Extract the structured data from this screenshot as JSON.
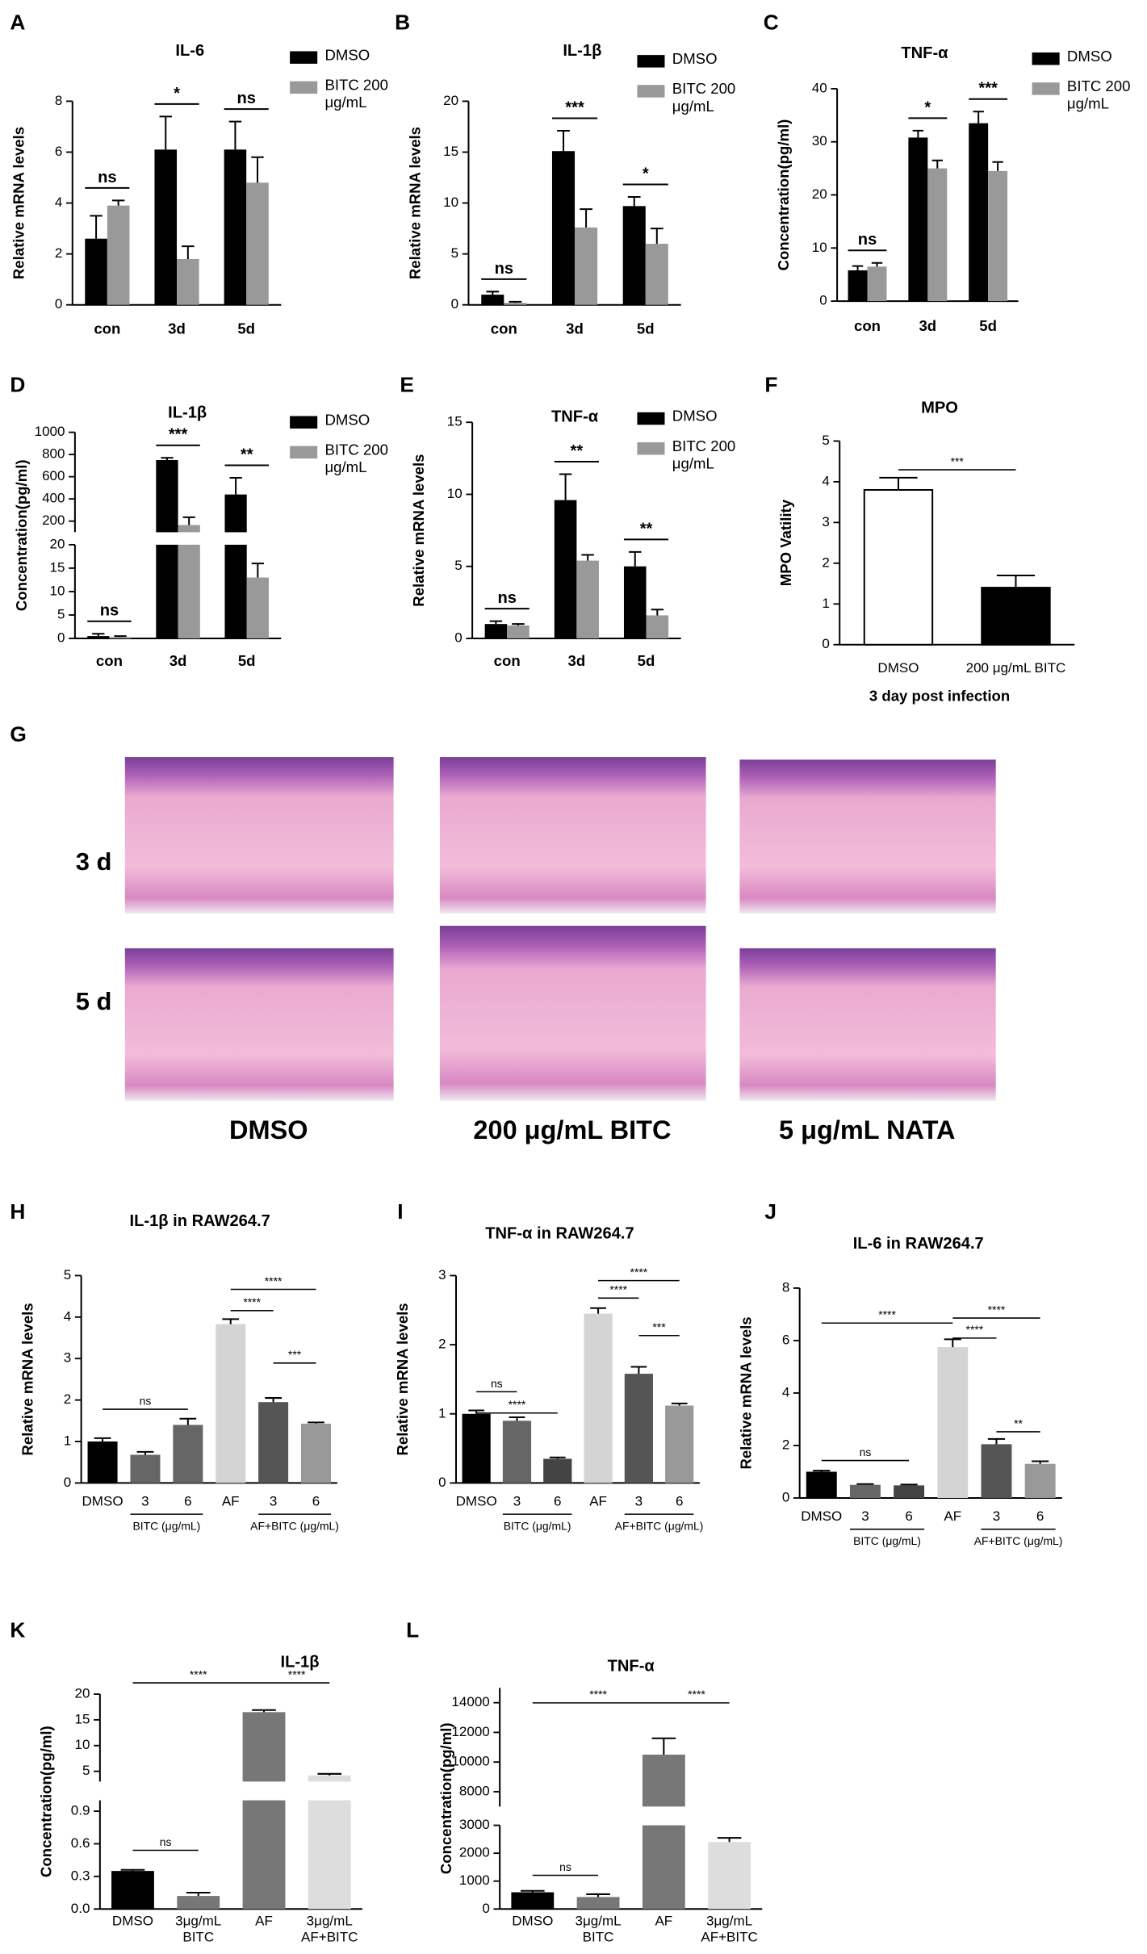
{
  "chart_data": [
    {
      "type": "bar",
      "panel": "A",
      "title": "IL-6",
      "ylabel": "Relative mRNA levels",
      "categories": [
        "con",
        "3d",
        "5d"
      ],
      "series": [
        {
          "name": "DMSO",
          "color": "#000000",
          "values": [
            2.6,
            6.1,
            6.1
          ],
          "errors": [
            0.9,
            1.3,
            1.1
          ]
        },
        {
          "name": "BITC 200 μg/mL",
          "color": "#999999",
          "values": [
            3.9,
            1.8,
            4.8
          ],
          "errors": [
            0.2,
            0.5,
            1.0
          ]
        }
      ],
      "ylim": [
        0,
        8
      ],
      "yticks": [
        0,
        2,
        4,
        6,
        8
      ],
      "annotations": [
        "ns",
        "*",
        "ns"
      ]
    },
    {
      "type": "bar",
      "panel": "B",
      "title": "IL-1β",
      "ylabel": "Relative mRNA levels",
      "categories": [
        "con",
        "3d",
        "5d"
      ],
      "series": [
        {
          "name": "DMSO",
          "color": "#000000",
          "values": [
            1.0,
            15.1,
            9.7
          ],
          "errors": [
            0.3,
            2.0,
            0.9
          ]
        },
        {
          "name": "BITC 200 μg/mL",
          "color": "#999999",
          "values": [
            0.2,
            7.6,
            6.0
          ],
          "errors": [
            0.1,
            1.8,
            1.5
          ]
        }
      ],
      "ylim": [
        0,
        20
      ],
      "yticks": [
        0,
        5,
        10,
        15,
        20
      ],
      "annotations": [
        "ns",
        "***",
        "*"
      ]
    },
    {
      "type": "bar",
      "panel": "C",
      "title": "TNF-α",
      "ylabel": "Concentration(pg/ml)",
      "categories": [
        "con",
        "3d",
        "5d"
      ],
      "series": [
        {
          "name": "DMSO",
          "color": "#000000",
          "values": [
            5.8,
            30.8,
            33.5
          ],
          "errors": [
            0.8,
            1.3,
            2.2
          ]
        },
        {
          "name": "BITC 200 μg/mL",
          "color": "#999999",
          "values": [
            6.5,
            25.0,
            24.5
          ],
          "errors": [
            0.7,
            1.5,
            1.7
          ]
        }
      ],
      "ylim": [
        0,
        40
      ],
      "yticks": [
        0,
        10,
        20,
        30,
        40
      ],
      "annotations": [
        "ns",
        "*",
        "***"
      ]
    },
    {
      "type": "bar",
      "panel": "D",
      "title": "IL-1β",
      "ylabel": "Concentration(pg/ml)",
      "categories": [
        "con",
        "3d",
        "5d"
      ],
      "series": [
        {
          "name": "DMSO",
          "color": "#000000",
          "values": [
            0.5,
            750,
            440
          ],
          "errors": [
            0.5,
            20,
            150
          ]
        },
        {
          "name": "BITC 200 μg/mL",
          "color": "#999999",
          "values": [
            0.3,
            165,
            13
          ],
          "errors": [
            0.2,
            70,
            3
          ]
        }
      ],
      "axis_segments": [
        {
          "ylim": [
            0,
            20
          ],
          "yticks": [
            0,
            5,
            10,
            15,
            20
          ]
        },
        {
          "ylim": [
            100,
            1000
          ],
          "yticks": [
            200,
            400,
            600,
            800,
            1000
          ]
        }
      ],
      "annotations": [
        "ns",
        "***",
        "**"
      ]
    },
    {
      "type": "bar",
      "panel": "E",
      "title": "TNF-α",
      "ylabel": "Relative mRNA levels",
      "categories": [
        "con",
        "3d",
        "5d"
      ],
      "series": [
        {
          "name": "DMSO",
          "color": "#000000",
          "values": [
            1.0,
            9.6,
            5.0
          ],
          "errors": [
            0.2,
            1.8,
            1.0
          ]
        },
        {
          "name": "BITC 200 μg/mL",
          "color": "#999999",
          "values": [
            0.9,
            5.4,
            1.6
          ],
          "errors": [
            0.1,
            0.4,
            0.4
          ]
        }
      ],
      "ylim": [
        0,
        15
      ],
      "yticks": [
        0,
        5,
        10,
        15
      ],
      "annotations": [
        "ns",
        "**",
        "**"
      ]
    },
    {
      "type": "bar",
      "panel": "F",
      "title": "MPO",
      "ylabel": "MPO Vatility",
      "xlabel": "3 day post infection",
      "categories": [
        "DMSO",
        "200 μg/mL BITC"
      ],
      "values": [
        3.8,
        1.4
      ],
      "errors": [
        0.3,
        0.3
      ],
      "colors": [
        "#ffffff",
        "#000000"
      ],
      "edgecolor": "#000000",
      "ylim": [
        0,
        5
      ],
      "yticks": [
        0,
        1,
        2,
        3,
        4,
        5
      ],
      "annotations": [
        "***"
      ]
    },
    {
      "type": "bar",
      "panel": "H",
      "title": "IL-1β  in RAW264.7",
      "ylabel": "Relative mRNA levels",
      "categories": [
        "DMSO",
        "3",
        "6",
        "AF",
        "3",
        "6"
      ],
      "group_labels": [
        "BITC (μg/mL)",
        "AF+BITC (μg/mL)"
      ],
      "values": [
        1.0,
        0.68,
        1.4,
        3.83,
        1.95,
        1.43
      ],
      "errors": [
        0.08,
        0.07,
        0.15,
        0.12,
        0.1,
        0.03
      ],
      "colors": [
        "#000000",
        "#666666",
        "#666666",
        "#d4d4d4",
        "#555555",
        "#999999"
      ],
      "ylim": [
        0,
        5
      ],
      "yticks": [
        0,
        1,
        2,
        3,
        4,
        5
      ],
      "annotations": [
        "ns",
        "****",
        "****",
        "***"
      ]
    },
    {
      "type": "bar",
      "panel": "I",
      "title": "TNF-α  in RAW264.7",
      "ylabel": "Relative mRNA levels",
      "categories": [
        "DMSO",
        "3",
        "6",
        "AF",
        "3",
        "6"
      ],
      "group_labels": [
        "BITC (μg/mL)",
        "AF+BITC (μg/mL)"
      ],
      "values": [
        1.0,
        0.9,
        0.35,
        2.45,
        1.58,
        1.12
      ],
      "errors": [
        0.05,
        0.05,
        0.02,
        0.08,
        0.1,
        0.03
      ],
      "colors": [
        "#000000",
        "#666666",
        "#444444",
        "#d4d4d4",
        "#555555",
        "#999999"
      ],
      "ylim": [
        0,
        3
      ],
      "yticks": [
        0,
        1,
        2,
        3
      ],
      "annotations": [
        "****",
        "ns",
        "****",
        "****",
        "***"
      ]
    },
    {
      "type": "bar",
      "panel": "J",
      "title": "IL-6  in RAW264.7",
      "ylabel": "Relative mRNA levels",
      "categories": [
        "DMSO",
        "3",
        "6",
        "AF",
        "3",
        "6"
      ],
      "group_labels": [
        "BITC (μg/mL)",
        "AF+BITC (μg/mL)"
      ],
      "values": [
        1.0,
        0.5,
        0.48,
        5.75,
        2.05,
        1.3
      ],
      "errors": [
        0.04,
        0.03,
        0.03,
        0.3,
        0.2,
        0.1
      ],
      "colors": [
        "#000000",
        "#666666",
        "#444444",
        "#d4d4d4",
        "#555555",
        "#999999"
      ],
      "ylim": [
        0,
        8
      ],
      "yticks": [
        0,
        2,
        4,
        6,
        8
      ],
      "annotations": [
        "****",
        "ns",
        "****",
        "****",
        "**"
      ]
    },
    {
      "type": "bar",
      "panel": "K",
      "title": "IL-1β",
      "ylabel": "Concentration(pg/ml)",
      "categories": [
        "DMSO",
        "3μg/mL BITC",
        "AF",
        "3μg/mL AF+BITC"
      ],
      "values": [
        0.35,
        0.12,
        16.5,
        4.2
      ],
      "errors": [
        0.01,
        0.03,
        0.4,
        0.3
      ],
      "colors": [
        "#000000",
        "#777777",
        "#777777",
        "#dddddd"
      ],
      "axis_segments": [
        {
          "ylim": [
            0,
            1.0
          ],
          "yticks": [
            {
              "value": 0,
              "label": "0.0"
            },
            0.3,
            0.6,
            0.9
          ]
        },
        {
          "ylim": [
            3,
            20
          ],
          "yticks": [
            5,
            10,
            15,
            20
          ]
        }
      ],
      "annotations": [
        "ns",
        "****",
        "****"
      ]
    },
    {
      "type": "bar",
      "panel": "L",
      "title": "TNF-α",
      "ylabel": "Concentration(pg/ml)",
      "categories": [
        "DMSO",
        "3μg/mL BITC",
        "AF",
        "3μg/mL AF+BITC"
      ],
      "values": [
        600,
        430,
        10500,
        2400
      ],
      "errors": [
        50,
        100,
        1100,
        150
      ],
      "colors": [
        "#000000",
        "#777777",
        "#777777",
        "#dddddd"
      ],
      "axis_segments": [
        {
          "ylim": [
            0,
            3000
          ],
          "yticks": [
            0,
            1000,
            2000,
            3000
          ]
        },
        {
          "ylim": [
            7000,
            15000
          ],
          "yticks": [
            8000,
            10000,
            12000,
            14000
          ]
        }
      ],
      "annotations": [
        "ns",
        "****",
        "****"
      ]
    }
  ],
  "histology": {
    "panel": "G",
    "rows": [
      "3 d",
      "5 d"
    ],
    "columns": [
      "DMSO",
      "200 μg/mL BITC",
      "5 μg/mL NATA"
    ]
  }
}
